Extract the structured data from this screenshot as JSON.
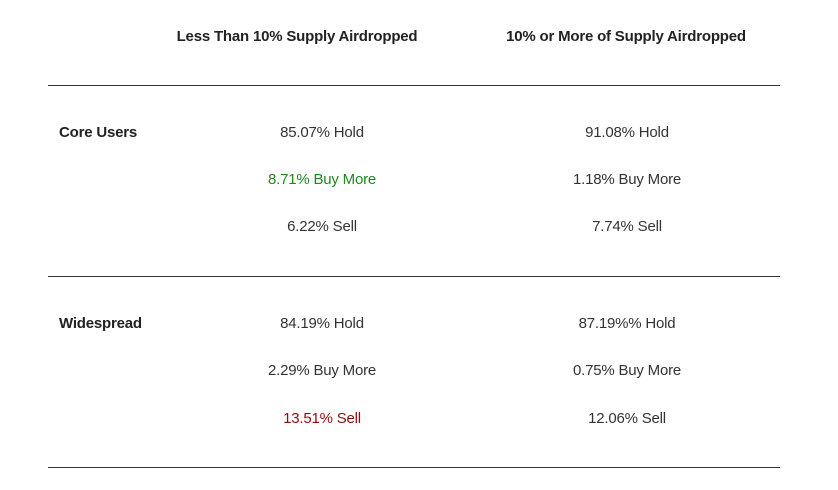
{
  "table": {
    "columns": [
      "Less Than 10% Supply Airdropped",
      "10% or More of Supply Airdropped"
    ],
    "rows": [
      {
        "label": "Core Users",
        "less_than_10": [
          "85.07% Hold",
          "8.71% Buy More",
          "6.22% Sell"
        ],
        "ten_or_more": [
          "91.08% Hold",
          "1.18% Buy More",
          "7.74% Sell"
        ]
      },
      {
        "label": "Widespread",
        "less_than_10": [
          "84.19% Hold",
          "2.29% Buy More",
          "13.51% Sell"
        ],
        "ten_or_more": [
          "87.19%% Hold",
          "0.75% Buy More",
          "12.06% Sell"
        ]
      }
    ]
  },
  "colors": {
    "highlight_positive": "#1e8a1e",
    "highlight_negative": "#8b0f0f",
    "text": "#333333",
    "rule": "#333333"
  }
}
